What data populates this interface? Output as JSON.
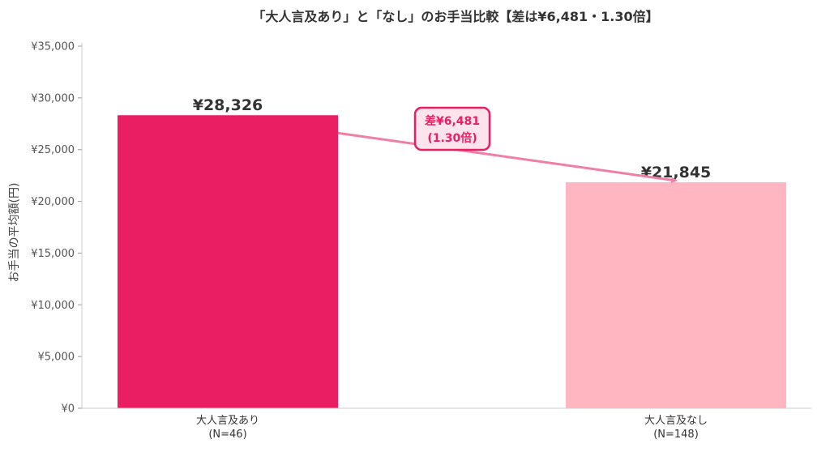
{
  "chart_data": {
    "type": "bar",
    "title": "「大人言及あり」と「なし」のお手当比較【差は¥6,481・1.30倍】",
    "ylabel": "お手当の平均額(円)",
    "xlabel": "",
    "ylim": [
      0,
      35000
    ],
    "yticks": [
      0,
      5000,
      10000,
      15000,
      20000,
      25000,
      30000,
      35000
    ],
    "ytick_labels": [
      "¥0",
      "¥5,000",
      "¥10,000",
      "¥15,000",
      "¥20,000",
      "¥25,000",
      "¥30,000",
      "¥35,000"
    ],
    "categories": [
      "大人言及あり",
      "大人言及なし"
    ],
    "category_sublabels": [
      "(N=46)",
      "(N=148)"
    ],
    "values": [
      28326,
      21845
    ],
    "value_labels": [
      "¥28,326",
      "¥21,845"
    ],
    "colors": [
      "#e91e63",
      "#ffb6c1"
    ],
    "grid": false,
    "annotation": {
      "lines": [
        "差¥6,481",
        "(1.30倍)"
      ],
      "from_category": 0,
      "to_category": 1,
      "color": "#e91e63",
      "arrow_color": "#f07fa6",
      "box_fill": "#fde4ec"
    }
  }
}
